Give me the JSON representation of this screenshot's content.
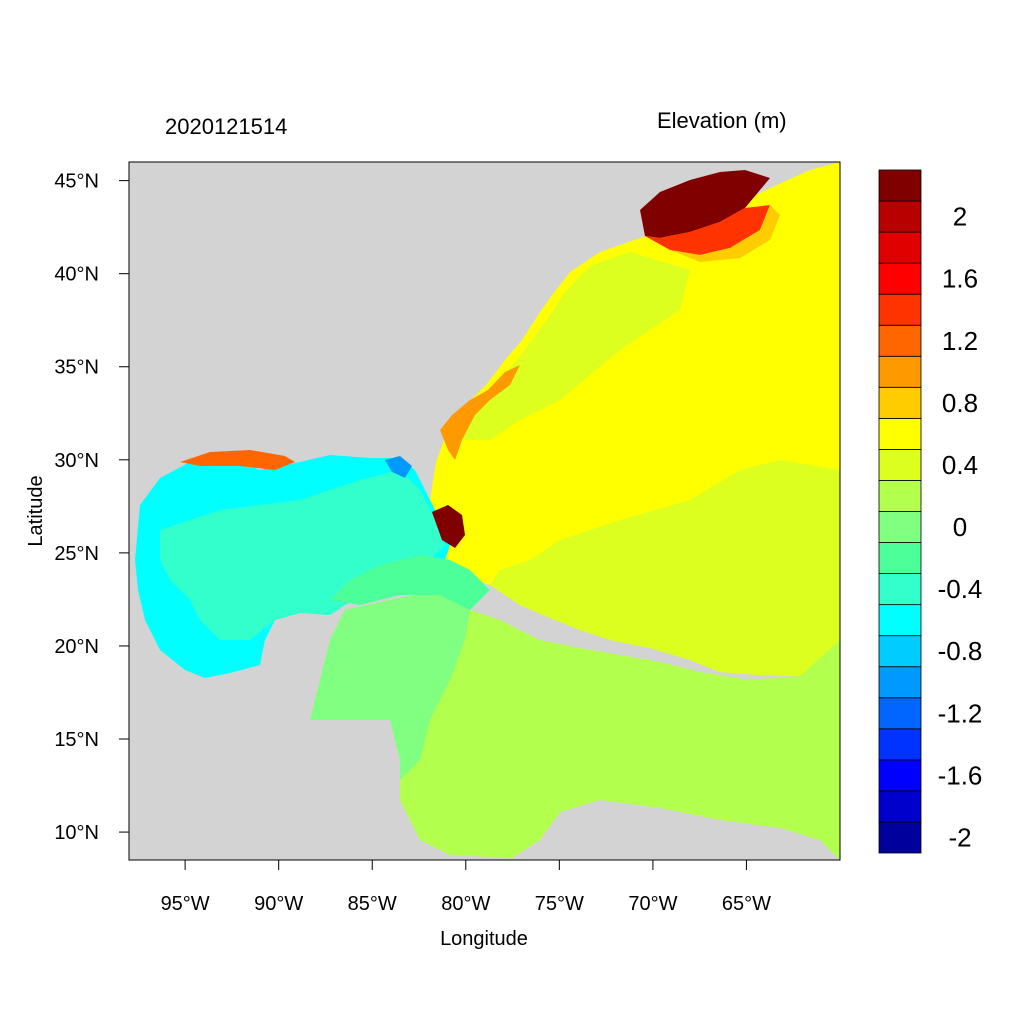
{
  "header": {
    "date_label": "2020121514",
    "variable_label": "Elevation (m)"
  },
  "axes": {
    "xlabel": "Longitude",
    "ylabel": "Latitude",
    "x_ticks": [
      {
        "value": -95,
        "label": "95°W"
      },
      {
        "value": -90,
        "label": "90°W"
      },
      {
        "value": -85,
        "label": "85°W"
      },
      {
        "value": -80,
        "label": "80°W"
      },
      {
        "value": -75,
        "label": "75°W"
      },
      {
        "value": -70,
        "label": "70°W"
      },
      {
        "value": -65,
        "label": "65°W"
      }
    ],
    "y_ticks": [
      {
        "value": 45,
        "label": "45°N"
      },
      {
        "value": 40,
        "label": "40°N"
      },
      {
        "value": 35,
        "label": "35°N"
      },
      {
        "value": 30,
        "label": "30°N"
      },
      {
        "value": 25,
        "label": "25°N"
      },
      {
        "value": 20,
        "label": "20°N"
      },
      {
        "value": 15,
        "label": "15°N"
      },
      {
        "value": 10,
        "label": "10°N"
      }
    ]
  },
  "map_extent": {
    "lon": [
      -98,
      -60
    ],
    "lat": [
      8.5,
      46
    ]
  },
  "land_color": "#d3d3d3",
  "colorbar": {
    "colors": [
      "#00009c",
      "#0000cc",
      "#0000ff",
      "#0033ff",
      "#0066ff",
      "#0099ff",
      "#00ccff",
      "#00ffff",
      "#33ffcc",
      "#4dff99",
      "#80ff80",
      "#b3ff4d",
      "#ddff1f",
      "#ffff00",
      "#ffcc00",
      "#ff9900",
      "#ff6600",
      "#ff3300",
      "#ff0000",
      "#e00000",
      "#b80000",
      "#800000"
    ],
    "labels": [
      {
        "value": -2,
        "label": "-2"
      },
      {
        "value": -1.6,
        "label": "-1.6"
      },
      {
        "value": -1.2,
        "label": "-1.2"
      },
      {
        "value": -0.8,
        "label": "-0.8"
      },
      {
        "value": -0.4,
        "label": "-0.4"
      },
      {
        "value": 0,
        "label": "0"
      },
      {
        "value": 0.4,
        "label": "0.4"
      },
      {
        "value": 0.8,
        "label": "0.8"
      },
      {
        "value": 1.2,
        "label": "1.2"
      },
      {
        "value": 1.6,
        "label": "1.6"
      },
      {
        "value": 2,
        "label": "2"
      }
    ]
  },
  "regions": [
    {
      "name": "gulf-of-mexico-region",
      "value": -0.7,
      "color": "#00ffff"
    },
    {
      "name": "western-atlantic-region",
      "value": 0.45,
      "color": "#ffff00"
    },
    {
      "name": "caribbean-sea-region",
      "value": 0.1,
      "color": "#b3ff4d"
    },
    {
      "name": "northeast-surge-region",
      "value": 2.1,
      "color": "#800000"
    },
    {
      "name": "south-florida-surge-region",
      "value": 2.1,
      "color": "#800000"
    }
  ]
}
